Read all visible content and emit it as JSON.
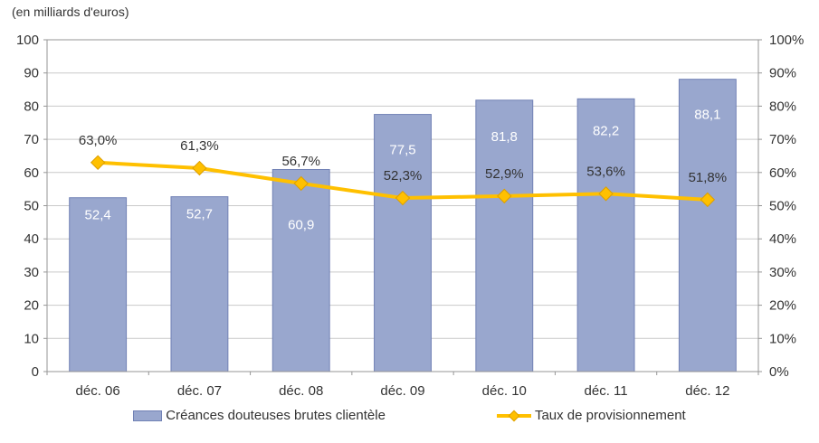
{
  "chart_data": {
    "type": "bar+line",
    "title": "(en milliards d'euros)",
    "categories": [
      "déc. 06",
      "déc. 07",
      "déc. 08",
      "déc. 09",
      "déc. 10",
      "déc. 11",
      "déc. 12"
    ],
    "series": [
      {
        "name": "Créances douteuses brutes clientèle",
        "type": "bar",
        "axis": "left",
        "values": [
          52.4,
          52.7,
          60.9,
          77.5,
          81.8,
          82.2,
          88.1
        ],
        "labels": [
          "52,4",
          "52,7",
          "60,9",
          "77,5",
          "81,8",
          "82,2",
          "88,1"
        ]
      },
      {
        "name": "Taux de provisionnement",
        "type": "line",
        "axis": "right",
        "values": [
          63.0,
          61.3,
          56.7,
          52.3,
          52.9,
          53.6,
          51.8
        ],
        "labels": [
          "63,0%",
          "61,3%",
          "56,7%",
          "52,3%",
          "52,9%",
          "53,6%",
          "51,8%"
        ]
      }
    ],
    "left_axis": {
      "min": 0,
      "max": 100,
      "step": 10,
      "tick_labels": [
        "0",
        "10",
        "20",
        "30",
        "40",
        "50",
        "60",
        "70",
        "80",
        "90",
        "100"
      ]
    },
    "right_axis": {
      "min": 0,
      "max": 100,
      "step": 10,
      "tick_labels": [
        "0%",
        "10%",
        "20%",
        "30%",
        "40%",
        "50%",
        "60%",
        "70%",
        "80%",
        "90%",
        "100%"
      ]
    },
    "grid": true,
    "legend_position": "bottom",
    "colors": {
      "bar_fill": "#99A7CE",
      "bar_border": "#7181B5",
      "line": "#FFC000",
      "marker_border": "#DD9F00",
      "grid": "#C9C9C9",
      "axis": "#969696",
      "text": "#333333",
      "bar_label": "#FFFFFF"
    },
    "layout_hints": {
      "bar_label_dy": [
        19,
        19,
        61,
        39,
        40,
        35,
        39
      ],
      "point_label_dy": -25
    }
  }
}
